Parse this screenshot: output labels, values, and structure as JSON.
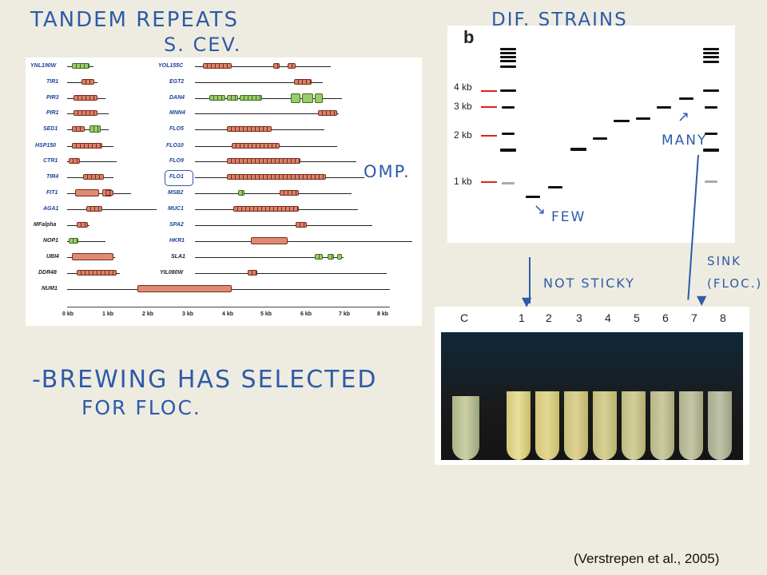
{
  "annotations": {
    "tandem": "TANDEM REPEATS",
    "scerv": "S. CEV.",
    "dif_strains": "DIF. STRAINS",
    "many": "MANY",
    "few": "FEW",
    "omp": "OMP.",
    "not_sticky": "NOT STICKY",
    "sink": "SINK",
    "floc": "(FLOC.)",
    "brewing1": "-BREWING HAS SELECTED",
    "brewing2": "FOR FLOC."
  },
  "genes_left": [
    "YNL190W",
    "TIR1",
    "PIR3",
    "PIR1",
    "SED1",
    "HSP150",
    "CTR1",
    "TIR4",
    "FIT1",
    "AGA1",
    "MFalpha",
    "NOP1",
    "UBI4",
    "DDR48",
    "NUM1"
  ],
  "genes_right": [
    "YOL155C",
    "EGT2",
    "DAN4",
    "MNN4",
    "FLO5",
    "FLO10",
    "FLO9",
    "FLO1",
    "MSB2",
    "MUC1",
    "SPA2",
    "HKR1",
    "SLA1",
    "YIL080W"
  ],
  "axis_ticks": [
    "0 kb",
    "1 kb",
    "2 kb",
    "3 kb",
    "4 kb",
    "5 kb",
    "6 kb",
    "7 kb",
    "8 kb"
  ],
  "gel": {
    "panel_letter": "b",
    "markers": [
      "4 kb",
      "3 kb",
      "2 kb",
      "1 kb"
    ]
  },
  "tubes": [
    "C",
    "1",
    "2",
    "3",
    "4",
    "5",
    "6",
    "7",
    "8"
  ],
  "citation": "(Verstrepen et al., 2005)",
  "colors": {
    "background": "#eeece1",
    "ink": "#2e5aa8",
    "repeat": "#d9826b",
    "green_repeat": "#9ccc6a",
    "marker_red": "#e02020"
  }
}
